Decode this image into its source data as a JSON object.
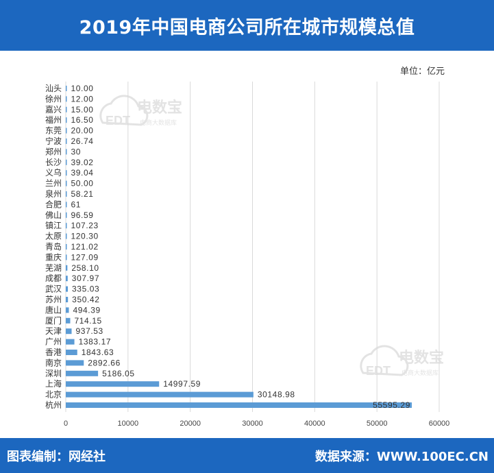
{
  "header": {
    "title": "2019年中国电商公司所在城市规模总值"
  },
  "unit_label": "单位：亿元",
  "watermark": {
    "brand": "电数宝",
    "tagline": "电商大数据库",
    "logo_text": "EDT"
  },
  "footer": {
    "left": "图表编制：网经社",
    "right": "数据来源：WWW.100EC.CN"
  },
  "colors": {
    "bar": "#5b9bd5",
    "header": "#1c67bf",
    "grid": "#d9d9d9"
  },
  "chart_data": {
    "type": "bar",
    "orientation": "horizontal",
    "title": "2019年中国电商公司所在城市规模总值",
    "xlim": [
      0,
      60000
    ],
    "xticks": [
      0,
      10000,
      20000,
      30000,
      40000,
      50000,
      60000
    ],
    "grid": true,
    "categories": [
      "汕头",
      "徐州",
      "嘉兴",
      "福州",
      "东莞",
      "宁波",
      "郑州",
      "长沙",
      "义乌",
      "兰州",
      "泉州",
      "合肥",
      "佛山",
      "镇江",
      "太原",
      "青岛",
      "重庆",
      "芜湖",
      "成都",
      "武汉",
      "苏州",
      "唐山",
      "厦门",
      "天津",
      "广州",
      "香港",
      "南京",
      "深圳",
      "上海",
      "北京",
      "杭州"
    ],
    "values": [
      10.0,
      12.0,
      15.0,
      16.5,
      20.0,
      26.74,
      30,
      39.02,
      39.04,
      50.0,
      58.21,
      61,
      96.59,
      107.23,
      120.3,
      121.02,
      127.09,
      258.1,
      307.97,
      335.03,
      350.42,
      494.39,
      714.15,
      937.53,
      1383.17,
      1843.63,
      2892.66,
      5186.05,
      14997.59,
      30148.98,
      55595.29
    ],
    "labels": [
      "10.00",
      "12.00",
      "15.00",
      "16.50",
      "20.00",
      "26.74",
      "30",
      "39.02",
      "39.04",
      "50.00",
      "58.21",
      "61",
      "96.59",
      "107.23",
      "120.30",
      "121.02",
      "127.09",
      "258.10",
      "307.97",
      "335.03",
      "350.42",
      "494.39",
      "714.15",
      "937.53",
      "1383.17",
      "1843.63",
      "2892.66",
      "5186.05",
      "14997.59",
      "30148.98",
      "55595.29"
    ]
  }
}
